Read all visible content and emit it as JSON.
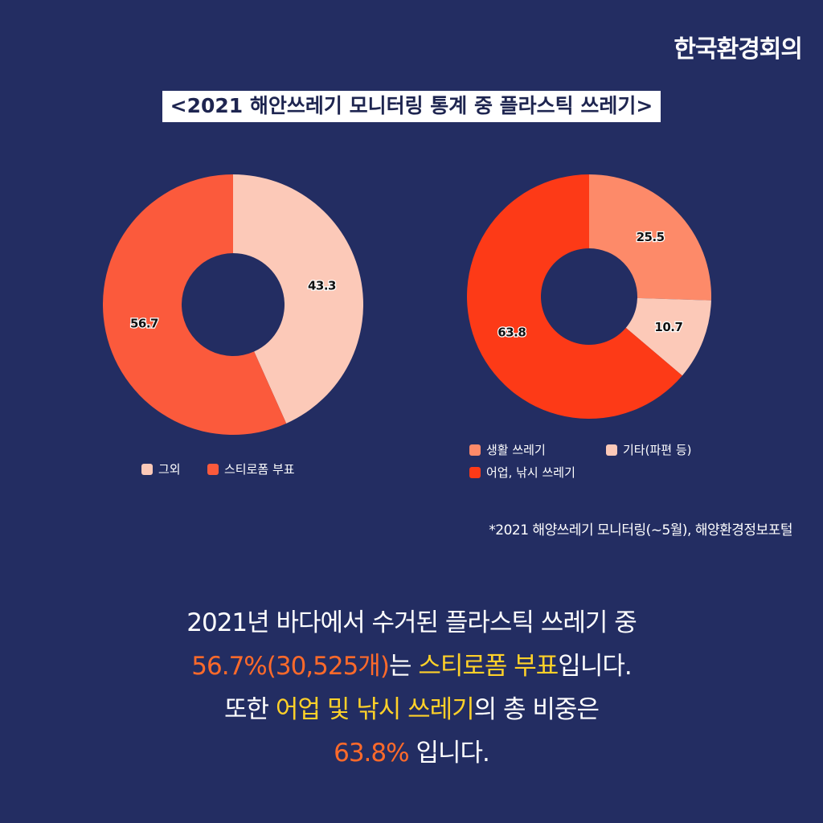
{
  "brand": "한국환경회의",
  "title": "<2021 해안쓰레기 모니터링 통계 중 플라스틱 쓰레기>",
  "chart_data": [
    {
      "type": "pie",
      "donut": true,
      "categories": [
        "그외",
        "스티로폼 부표"
      ],
      "values": [
        43.3,
        56.7
      ],
      "labels": [
        "43.3",
        "56.7"
      ],
      "colors": [
        "#fcc9b8",
        "#fb5a3c"
      ],
      "legend": "bottom"
    },
    {
      "type": "pie",
      "donut": true,
      "categories": [
        "생활 쓰레기",
        "기타(파편 등)",
        "어업, 낚시 쓰레기"
      ],
      "values": [
        25.5,
        10.7,
        63.8
      ],
      "labels": [
        "25.5",
        "10.7",
        "63.8"
      ],
      "colors": [
        "#fd8a69",
        "#fcc9b8",
        "#fd3a17"
      ],
      "legend": "bottom"
    }
  ],
  "source": "*2021 해양쓰레기 모니터링(~5월), 해양환경정보포털",
  "summary": {
    "line1": "2021년 바다에서 수거된 플라스틱 쓰레기 중",
    "line2_highlight1": "56.7%(30,525개)",
    "line2_text1": "는 ",
    "line2_highlight2": "스티로폼 부표",
    "line2_text2": "입니다.",
    "line3_text1": "또한 ",
    "line3_highlight": "어업 및 낚시 쓰레기",
    "line3_text2": "의 총 비중은",
    "line4_highlight": "63.8%",
    "line4_text": " 입니다."
  }
}
